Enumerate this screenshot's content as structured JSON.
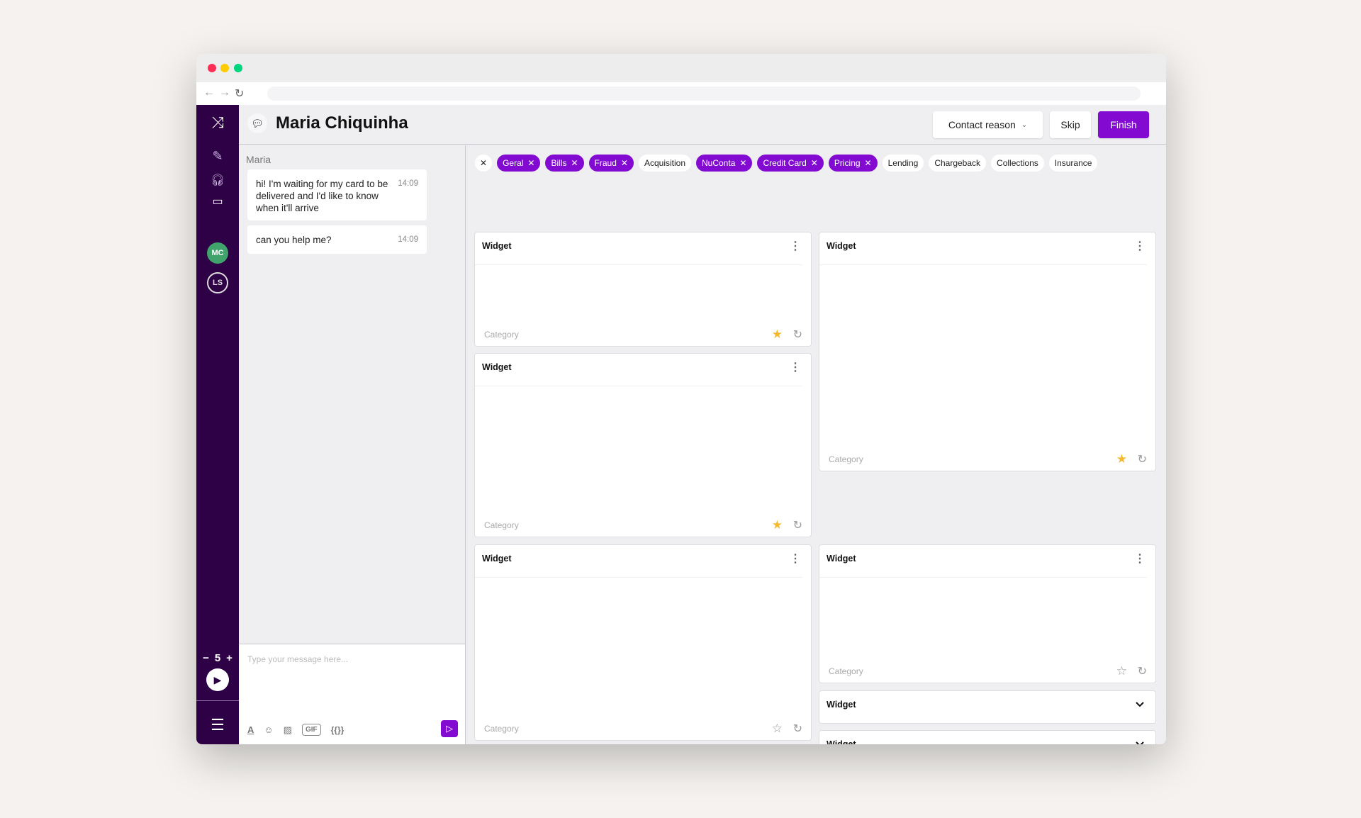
{
  "header": {
    "title": "Maria Chiquinha",
    "contact_reason": "Contact reason",
    "skip": "Skip",
    "finish": "Finish"
  },
  "colors": {
    "accent": "#820ad1",
    "sidebar": "#2e0045",
    "avatar_mc": "#3fa36b"
  },
  "sidebar": {
    "avatars": [
      "MC",
      "LS"
    ],
    "counter": {
      "minus": "−",
      "value": "5",
      "plus": "+"
    }
  },
  "chat": {
    "sender": "Maria",
    "messages": [
      {
        "text": "hi! I'm waiting for my card to be delivered and I'd like to know when it'll arrive",
        "time": "14:09"
      },
      {
        "text": "can you help me?",
        "time": "14:09"
      }
    ],
    "placeholder": "Type your message here...",
    "gif": "GIF",
    "template": "{{}}"
  },
  "chips": [
    {
      "label": "Geral",
      "on": true
    },
    {
      "label": "Bills",
      "on": true
    },
    {
      "label": "Fraud",
      "on": true
    },
    {
      "label": "Acquisition",
      "on": false
    },
    {
      "label": "NuConta",
      "on": true
    },
    {
      "label": "Credit Card",
      "on": true
    },
    {
      "label": "Pricing",
      "on": true
    },
    {
      "label": "Lending",
      "on": false
    },
    {
      "label": "Chargeback",
      "on": false
    },
    {
      "label": "Collections",
      "on": false
    },
    {
      "label": "Insurance",
      "on": false
    }
  ],
  "widgets": [
    {
      "title": "Widget",
      "category": "Category",
      "starred": true,
      "type": "full"
    },
    {
      "title": "Widget",
      "category": "Category",
      "starred": true,
      "type": "full"
    },
    {
      "title": "Widget",
      "category": "Category",
      "starred": false,
      "type": "full"
    },
    {
      "title": "Widget",
      "type": "partial"
    },
    {
      "title": "Widget",
      "category": "Category",
      "starred": true,
      "type": "full"
    },
    {
      "title": "Widget",
      "category": "Category",
      "starred": false,
      "type": "full"
    },
    {
      "title": "Widget",
      "type": "collapsed"
    },
    {
      "title": "Widget",
      "type": "collapsed"
    },
    {
      "title": "Widget",
      "type": "partial"
    }
  ]
}
